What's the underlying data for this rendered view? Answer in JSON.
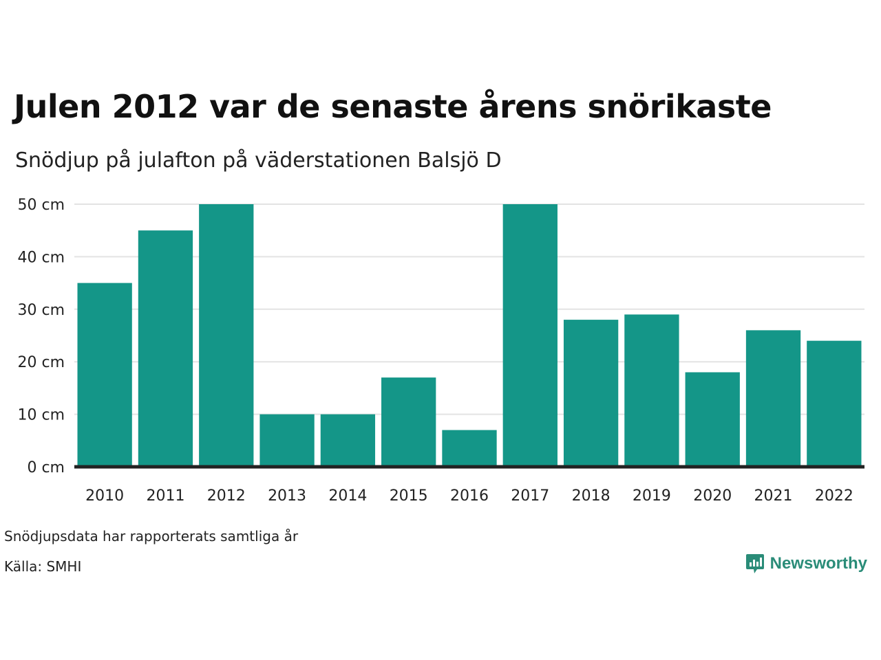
{
  "header": {
    "title": "Julen 2012 var de senaste årens snörikaste",
    "subtitle": "Snödjup på julafton på väderstationen Balsjö D"
  },
  "footer": {
    "note": "Snödjupsdata har rapporterats samtliga år",
    "source": "Källa: SMHI",
    "brand_name": "Newsworthy",
    "brand_icon": "newsworthy-logo-icon"
  },
  "colors": {
    "bar": "#149688",
    "grid": "#e3e3e3",
    "axis": "#222222",
    "brand": "#2a8c78"
  },
  "chart_data": {
    "type": "bar",
    "title": "Julen 2012 var de senaste årens snörikaste",
    "subtitle": "Snödjup på julafton på väderstationen Balsjö D",
    "categories": [
      "2010",
      "2011",
      "2012",
      "2013",
      "2014",
      "2015",
      "2016",
      "2017",
      "2018",
      "2019",
      "2020",
      "2021",
      "2022"
    ],
    "values": [
      35,
      45,
      50,
      10,
      10,
      17,
      7,
      50,
      28,
      29,
      18,
      26,
      24
    ],
    "ylim": [
      0,
      50
    ],
    "yticks": [
      0,
      10,
      20,
      30,
      40,
      50
    ],
    "ytick_labels": [
      "0 cm",
      "10 cm",
      "20 cm",
      "30 cm",
      "40 cm",
      "50 cm"
    ],
    "grid": true,
    "legend": "none"
  }
}
